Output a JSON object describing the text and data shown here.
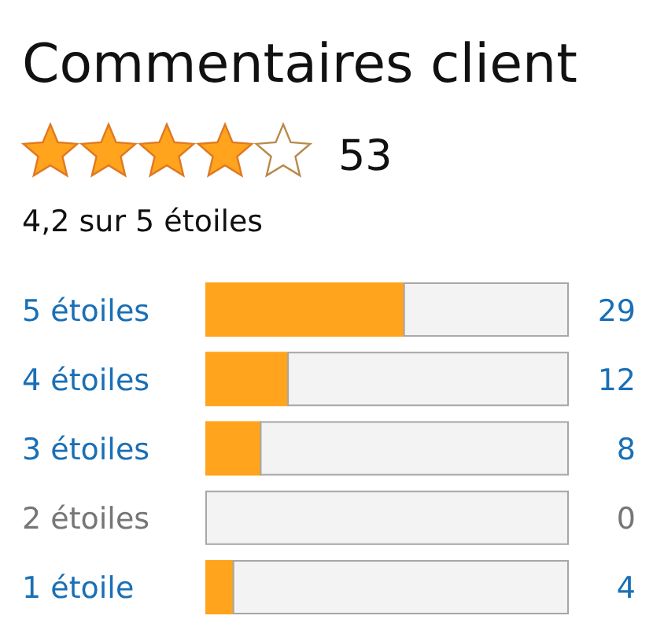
{
  "chart_data": {
    "type": "bar",
    "orientation": "horizontal",
    "stacked": true,
    "title": "Commentaires client",
    "annotations": [
      "53",
      "4,2 sur 5 étoiles"
    ],
    "categories": [
      "5 étoiles",
      "4 étoiles",
      "3 étoiles",
      "2 étoiles",
      "1 étoile"
    ],
    "series": [
      {
        "color": "#ffa41c",
        "values": [
          29,
          12,
          8,
          0,
          4
        ],
        "value_labels": [
          "29",
          "12",
          "8",
          "0",
          "4"
        ]
      },
      {
        "color": "#f3f3f3",
        "values": [
          24,
          41,
          45,
          53,
          49
        ]
      }
    ],
    "xlim": [
      0,
      53
    ]
  }
}
